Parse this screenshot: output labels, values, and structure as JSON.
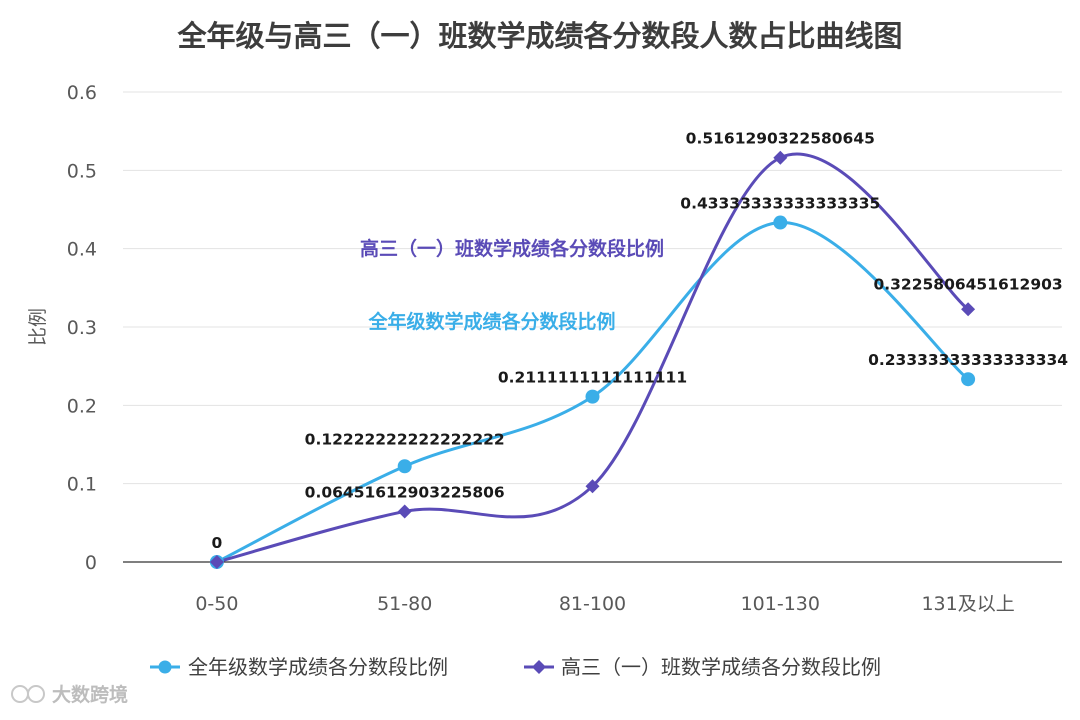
{
  "chart_data": {
    "type": "line",
    "title": "全年级与高三（一）班数学成绩各分数段人数占比曲线图",
    "xlabel": "",
    "ylabel": "比例",
    "categories": [
      "0-50",
      "51-80",
      "81-100",
      "101-130",
      "131及以上"
    ],
    "ylim": [
      0,
      0.6
    ],
    "yticks": [
      "0",
      "0.1",
      "0.2",
      "0.3",
      "0.4",
      "0.5",
      "0.6"
    ],
    "grid": true,
    "legend_position": "bottom",
    "series": [
      {
        "name": "全年级数学成绩各分数段比例",
        "color": "#3aaee8",
        "marker": "circle",
        "values": [
          0,
          0.12222222222222222,
          0.2111111111111111,
          0.43333333333333335,
          0.23333333333333334
        ],
        "labels": [
          "0",
          "0.12222222222222222",
          "0.2111111111111111",
          "0.43333333333333335",
          "0.23333333333333334"
        ]
      },
      {
        "name": "高三（一）班数学成绩各分数段比例",
        "color": "#5a4bb7",
        "marker": "diamond",
        "values": [
          0,
          0.06451612903225806,
          0.0967741935483871,
          0.5161290322580645,
          0.3225806451612903
        ],
        "labels": [
          "",
          "0.06451612903225806",
          "",
          "0.5161290322580645",
          "0.3225806451612903"
        ]
      }
    ]
  },
  "watermark": "大数跨境"
}
